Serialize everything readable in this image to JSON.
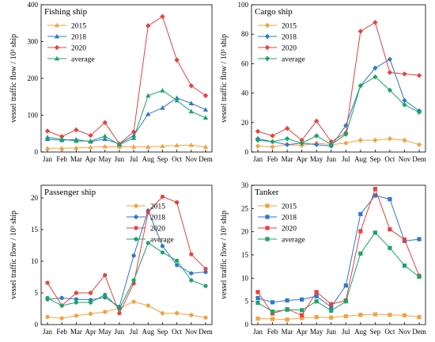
{
  "colors": {
    "2015": "#f5a142",
    "2018": "#2f78c8",
    "2020": "#e8413c",
    "average": "#1aa564"
  },
  "chart_data": [
    {
      "type": "line",
      "title": "Fishing ship",
      "ylabel": "vessel traffic flow / 10³ ship",
      "xlabel": "",
      "categories": [
        "Jan",
        "Feb",
        "Mar",
        "Apr",
        "May",
        "Jun",
        "Jul",
        "Aug",
        "Sep",
        "Oct",
        "Nov",
        "Dem"
      ],
      "ylim": [
        0,
        400
      ],
      "yticks": [
        0,
        100,
        200,
        300,
        400
      ],
      "legend_position": "top-left",
      "series": [
        {
          "name": "2015",
          "marker": "triangle",
          "values": [
            10,
            10,
            11,
            13,
            15,
            14,
            14,
            14,
            16,
            18,
            19,
            14
          ]
        },
        {
          "name": "2018",
          "marker": "triangle",
          "values": [
            35,
            32,
            34,
            28,
            35,
            22,
            45,
            103,
            120,
            147,
            132,
            115
          ]
        },
        {
          "name": "2020",
          "marker": "diamond",
          "values": [
            57,
            42,
            60,
            45,
            80,
            22,
            55,
            343,
            368,
            250,
            180,
            153
          ]
        },
        {
          "name": "average",
          "marker": "triangle",
          "values": [
            40,
            35,
            30,
            30,
            43,
            20,
            38,
            153,
            167,
            140,
            110,
            93
          ]
        }
      ]
    },
    {
      "type": "line",
      "title": "Cargo ship",
      "ylabel": "vessel traffic flow / 10³ ship",
      "xlabel": "",
      "categories": [
        "Jan",
        "Feb",
        "Mar",
        "Apr",
        "May",
        "Jun",
        "Jul",
        "Aug",
        "Sep",
        "Oct",
        "Nov",
        "Dem"
      ],
      "ylim": [
        0,
        100
      ],
      "yticks": [
        0,
        20,
        40,
        60,
        80,
        100
      ],
      "legend_position": "top-left",
      "series": [
        {
          "name": "2015",
          "marker": "diamond",
          "values": [
            4,
            3.5,
            5,
            4.5,
            6,
            5,
            6,
            8,
            8,
            9,
            8,
            5
          ]
        },
        {
          "name": "2018",
          "marker": "diamond",
          "values": [
            9,
            7,
            5,
            6,
            5,
            4,
            18,
            45,
            57,
            63,
            35,
            28
          ]
        },
        {
          "name": "2020",
          "marker": "diamond",
          "values": [
            14,
            11,
            16,
            8,
            21,
            7,
            13,
            82,
            88,
            54,
            53,
            52
          ]
        },
        {
          "name": "average",
          "marker": "diamond",
          "values": [
            8,
            7,
            9,
            6,
            11,
            5,
            12,
            45,
            51,
            42,
            32,
            27
          ]
        }
      ]
    },
    {
      "type": "line",
      "title": "Passenger ship",
      "ylabel": "vessel traffic flow / 10³ ship",
      "xlabel": "",
      "categories": [
        "Jan",
        "Feb",
        "Mar",
        "Apr",
        "May",
        "Jun",
        "Jul",
        "Aug",
        "Sep",
        "Oct",
        "Nov",
        "Dem"
      ],
      "ylim": [
        0,
        22
      ],
      "yticks": [
        0,
        5,
        10,
        15,
        20
      ],
      "legend_position": "top-right",
      "series": [
        {
          "name": "2015",
          "marker": "circle",
          "values": [
            1.2,
            1.0,
            1.4,
            1.7,
            2.0,
            2.6,
            3.6,
            3.0,
            1.8,
            1.8,
            1.5,
            1.1
          ]
        },
        {
          "name": "2018",
          "marker": "circle",
          "values": [
            4.0,
            4.2,
            4.0,
            3.9,
            4.3,
            2.8,
            10.9,
            18.0,
            12.4,
            9.4,
            8.1,
            8.3
          ]
        },
        {
          "name": "2020",
          "marker": "circle",
          "values": [
            6.6,
            3.0,
            5.0,
            5.0,
            7.8,
            1.8,
            6.5,
            17.7,
            20.2,
            19.3,
            11.1,
            8.8
          ]
        },
        {
          "name": "average",
          "marker": "circle",
          "values": [
            4.2,
            3.0,
            3.5,
            3.5,
            4.7,
            2.5,
            7.0,
            12.9,
            11.4,
            10.1,
            7.0,
            6.1
          ]
        }
      ]
    },
    {
      "type": "line",
      "title": "Tanker",
      "ylabel": "vessel traffic flow / 10³ ship",
      "xlabel": "",
      "categories": [
        "Jan",
        "Feb",
        "Mar",
        "Apr",
        "May",
        "Jun",
        "Jul",
        "Aug",
        "Sep",
        "Oct",
        "Nov",
        "Dem"
      ],
      "ylim": [
        0,
        30
      ],
      "yticks": [
        0,
        5,
        10,
        15,
        20,
        25,
        30
      ],
      "legend_position": "top-left",
      "series": [
        {
          "name": "2015",
          "marker": "square",
          "values": [
            1.3,
            1.2,
            1.1,
            1.4,
            1.6,
            1.5,
            1.8,
            2.1,
            2.2,
            2.1,
            2.0,
            1.6
          ]
        },
        {
          "name": "2018",
          "marker": "square",
          "values": [
            5.7,
            4.8,
            5.2,
            5.4,
            6.1,
            3.8,
            8.4,
            23.8,
            27.8,
            27.0,
            18.0,
            18.4
          ]
        },
        {
          "name": "2020",
          "marker": "square",
          "values": [
            7.0,
            2.4,
            3.3,
            2.0,
            7.0,
            4.4,
            5.2,
            20.1,
            29.2,
            20.5,
            18.3,
            10.5
          ]
        },
        {
          "name": "average",
          "marker": "square",
          "values": [
            4.7,
            2.8,
            3.2,
            3.1,
            5.0,
            3.0,
            5.0,
            15.3,
            19.8,
            16.5,
            12.7,
            10.3
          ]
        }
      ]
    }
  ]
}
